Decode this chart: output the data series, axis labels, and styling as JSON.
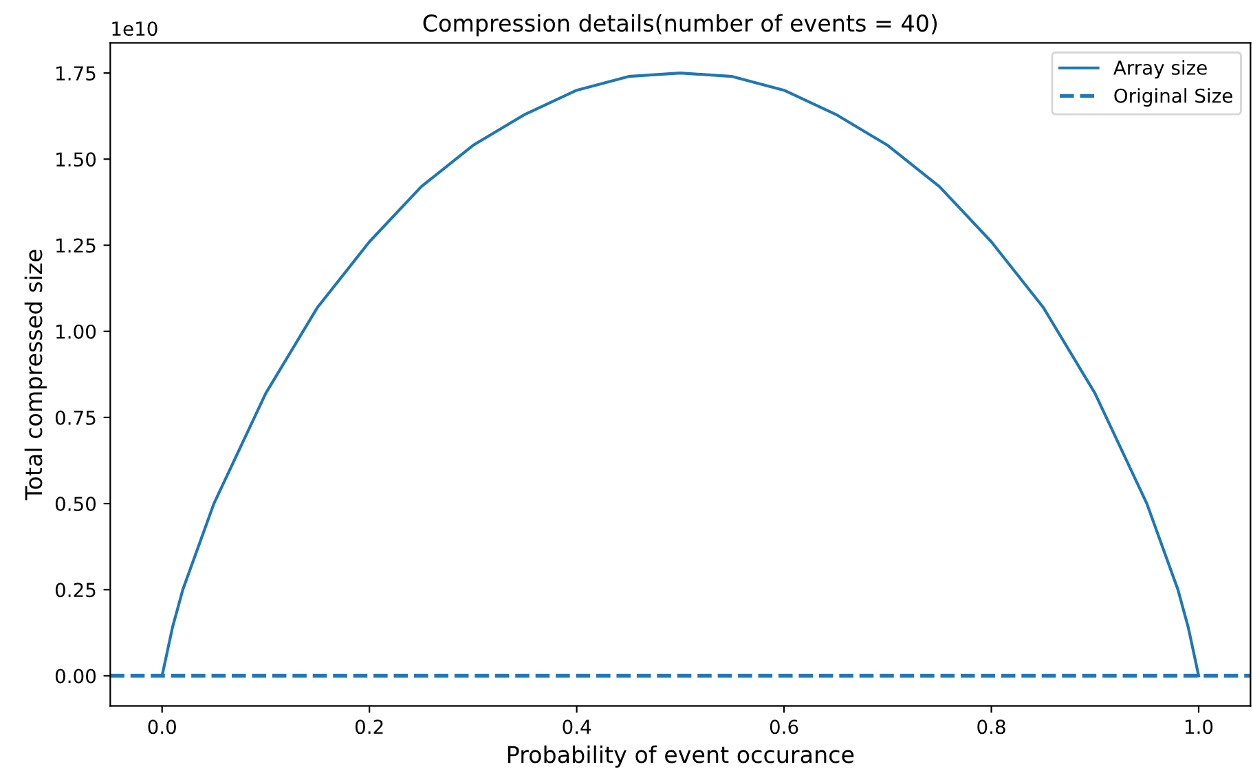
{
  "chart_data": {
    "type": "line",
    "title": "Compression details(number of events = 40)",
    "xlabel": "Probability of event occurance",
    "ylabel": "Total compressed size",
    "annotations": [
      "1e10"
    ],
    "xlim": [
      -0.05,
      1.05
    ],
    "xticks": [
      {
        "value": 0,
        "label": "0.0"
      },
      0.2,
      0.4,
      0.6,
      0.8,
      {
        "value": 1,
        "label": "1.0"
      }
    ],
    "ylim": [
      -0.0875,
      1.8375
    ],
    "yticks": [
      {
        "value": 0,
        "label": "0.00"
      },
      0.25,
      {
        "value": 0.5,
        "label": "0.50"
      },
      0.75,
      {
        "value": 1,
        "label": "1.00"
      },
      1.25,
      {
        "value": 1.5,
        "label": "1.50"
      },
      1.75
    ],
    "legend": "top right",
    "grid": false,
    "series": [
      {
        "name": "Array size",
        "color": "#1f77b4",
        "line_style": "solid",
        "x": [
          0,
          0.01,
          0.02,
          0.05,
          0.1,
          0.15,
          0.2,
          0.25,
          0.3,
          0.35,
          0.4,
          0.45,
          0.5,
          0.55,
          0.6,
          0.65,
          0.7,
          0.75,
          0.8,
          0.85,
          0.9,
          0.95,
          0.98,
          0.99,
          1
        ],
        "values": [
          0,
          0.14,
          0.25,
          0.5,
          0.82,
          1.07,
          1.26,
          1.42,
          1.54,
          1.63,
          1.7,
          1.74,
          1.75,
          1.74,
          1.7,
          1.63,
          1.54,
          1.42,
          1.26,
          1.07,
          0.82,
          0.5,
          0.25,
          0.14,
          0
        ]
      },
      {
        "name": "Original Size",
        "color": "#1f77b4",
        "line_style": "dashed",
        "x": [
          -0.05,
          1.05
        ],
        "values": [
          0,
          0
        ]
      }
    ]
  }
}
